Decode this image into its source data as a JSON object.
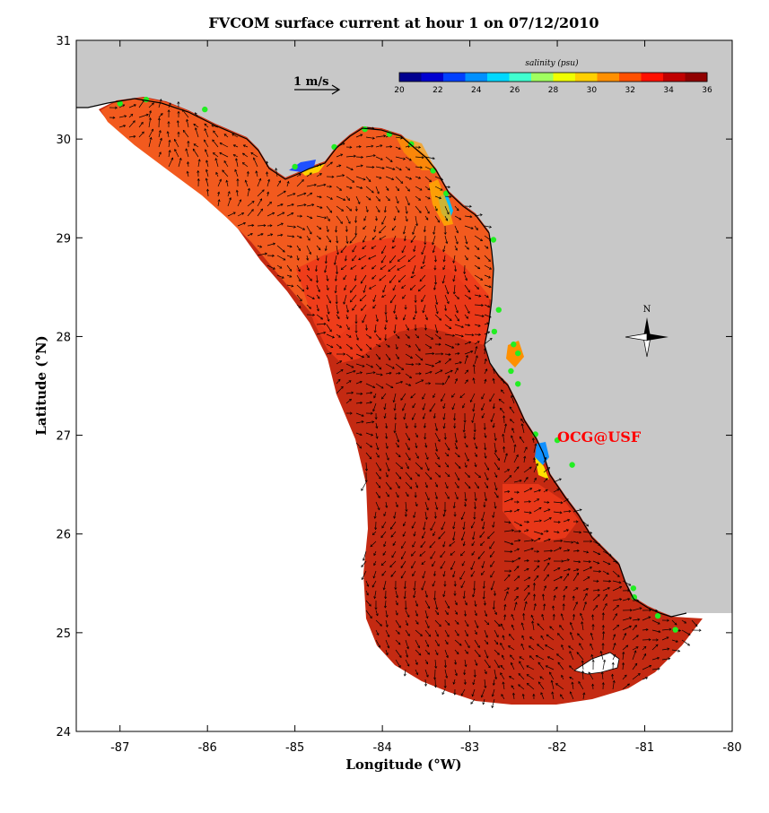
{
  "title": "FVCOM surface current at hour 1 on 07/12/2010",
  "x_axis": {
    "label": "Longitude (°W)",
    "ticks": [
      -87,
      -86,
      -85,
      -84,
      -83,
      -82,
      -81,
      -80
    ]
  },
  "y_axis": {
    "label": "Latitude (°N)",
    "ticks": [
      24,
      25,
      26,
      27,
      28,
      29,
      30,
      31
    ]
  },
  "colorbar": {
    "title": "salinity (psu)",
    "ticks": [
      20,
      22,
      24,
      26,
      28,
      30,
      32,
      34,
      36
    ],
    "colors": [
      "#00008f",
      "#0000d0",
      "#0040ff",
      "#0090ff",
      "#00d8ff",
      "#40ffd0",
      "#a0ff60",
      "#f0ff00",
      "#ffd000",
      "#ff9000",
      "#ff5000",
      "#ff1000",
      "#c00000",
      "#900000"
    ]
  },
  "scale_arrow": {
    "label": "1 m/s"
  },
  "credit": "OCG@USF",
  "compass": {
    "label": "N"
  },
  "colors": {
    "land": "#c8c8c8",
    "sea_base": "#c42a12",
    "sea_mid": "#ee3a1a",
    "sea_shelf": "#f25a1e",
    "station": "#22ee22",
    "credit": "#ff0000"
  },
  "map_data": {
    "lon_range": [
      -87.5,
      -80
    ],
    "lat_range": [
      24,
      31
    ],
    "stations": [
      [
        -87.0,
        30.36
      ],
      [
        -86.7,
        30.4
      ],
      [
        -86.03,
        30.3
      ],
      [
        -85.0,
        29.72
      ],
      [
        -84.55,
        29.92
      ],
      [
        -84.2,
        30.1
      ],
      [
        -83.92,
        30.05
      ],
      [
        -83.67,
        29.95
      ],
      [
        -83.42,
        29.68
      ],
      [
        -83.27,
        29.45
      ],
      [
        -82.73,
        28.98
      ],
      [
        -82.67,
        28.27
      ],
      [
        -82.72,
        28.05
      ],
      [
        -82.5,
        27.92
      ],
      [
        -82.45,
        27.83
      ],
      [
        -82.53,
        27.65
      ],
      [
        -82.45,
        27.52
      ],
      [
        -82.25,
        27.01
      ],
      [
        -82.0,
        26.95
      ],
      [
        -81.83,
        26.7
      ],
      [
        -81.13,
        25.45
      ],
      [
        -81.12,
        25.36
      ],
      [
        -80.85,
        25.17
      ],
      [
        -80.65,
        25.03
      ]
    ]
  }
}
